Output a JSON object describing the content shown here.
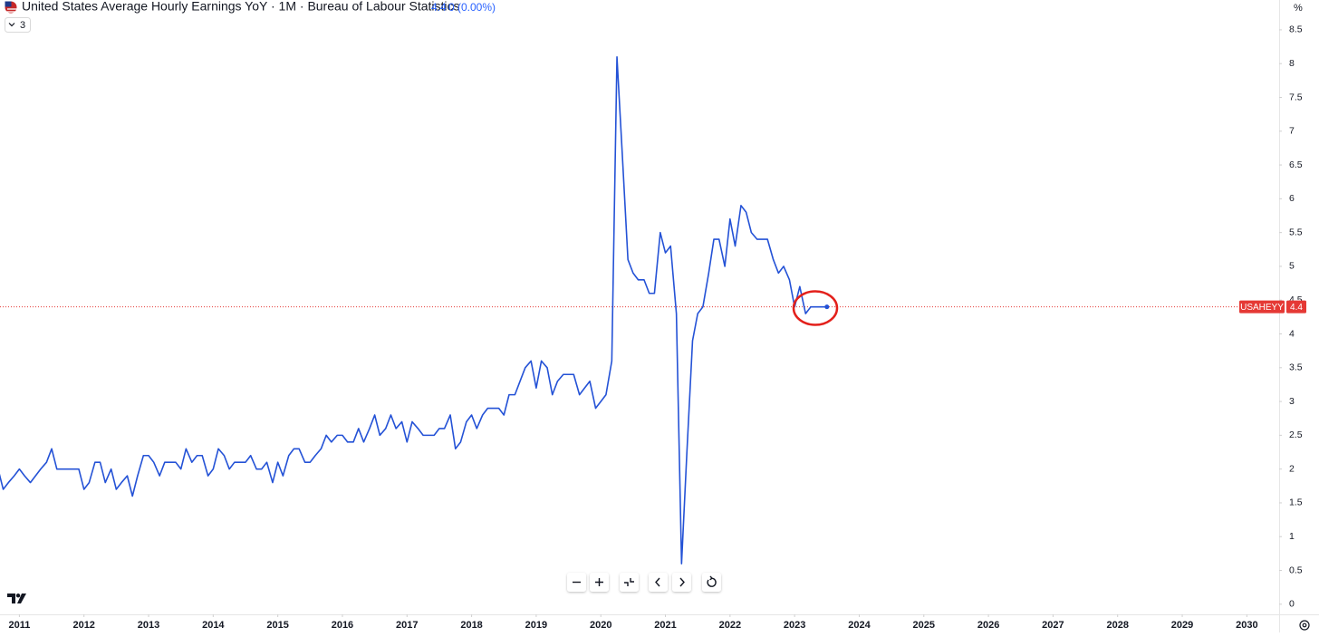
{
  "header": {
    "title": "United States Average Hourly Earnings YoY · 1M · Bureau of Labour Statistics",
    "change": "0 (0.00%)",
    "interval_button": "3"
  },
  "chart_data": {
    "type": "line",
    "x": [
      2010.67,
      2010.75,
      2010.83,
      2010.92,
      2011,
      2011.08,
      2011.17,
      2011.25,
      2011.33,
      2011.42,
      2011.5,
      2011.58,
      2011.67,
      2011.75,
      2011.83,
      2011.92,
      2012,
      2012.08,
      2012.17,
      2012.25,
      2012.33,
      2012.42,
      2012.5,
      2012.58,
      2012.67,
      2012.75,
      2012.83,
      2012.92,
      2013,
      2013.08,
      2013.17,
      2013.25,
      2013.33,
      2013.42,
      2013.5,
      2013.58,
      2013.67,
      2013.75,
      2013.83,
      2013.92,
      2014,
      2014.08,
      2014.17,
      2014.25,
      2014.33,
      2014.42,
      2014.5,
      2014.58,
      2014.67,
      2014.75,
      2014.83,
      2014.92,
      2015,
      2015.08,
      2015.17,
      2015.25,
      2015.33,
      2015.42,
      2015.5,
      2015.58,
      2015.67,
      2015.75,
      2015.83,
      2015.92,
      2016,
      2016.08,
      2016.17,
      2016.25,
      2016.33,
      2016.42,
      2016.5,
      2016.58,
      2016.67,
      2016.75,
      2016.83,
      2016.92,
      2017,
      2017.08,
      2017.17,
      2017.25,
      2017.33,
      2017.42,
      2017.5,
      2017.58,
      2017.67,
      2017.75,
      2017.83,
      2017.92,
      2018,
      2018.08,
      2018.17,
      2018.25,
      2018.33,
      2018.42,
      2018.5,
      2018.58,
      2018.67,
      2018.75,
      2018.83,
      2018.92,
      2019,
      2019.08,
      2019.17,
      2019.25,
      2019.33,
      2019.42,
      2019.5,
      2019.58,
      2019.67,
      2019.75,
      2019.83,
      2019.92,
      2020,
      2020.08,
      2020.17,
      2020.25,
      2020.33,
      2020.42,
      2020.5,
      2020.58,
      2020.67,
      2020.75,
      2020.83,
      2020.92,
      2021,
      2021.08,
      2021.17,
      2021.25,
      2021.33,
      2021.42,
      2021.5,
      2021.58,
      2021.67,
      2021.75,
      2021.83,
      2021.92,
      2022,
      2022.08,
      2022.17,
      2022.25,
      2022.33,
      2022.42,
      2022.5,
      2022.58,
      2022.67,
      2022.75,
      2022.83,
      2022.92,
      2023,
      2023.08,
      2023.17,
      2023.25,
      2023.33,
      2023.42,
      2023.5
    ],
    "series": [
      {
        "name": "USAHEYY",
        "color": "#2452d6",
        "values": [
          2.0,
          1.7,
          1.8,
          1.9,
          2.0,
          1.9,
          1.8,
          1.9,
          2.0,
          2.1,
          2.3,
          2.0,
          2.0,
          2.0,
          2.0,
          2.0,
          1.7,
          1.8,
          2.1,
          2.1,
          1.8,
          2.0,
          1.7,
          1.8,
          1.9,
          1.6,
          1.9,
          2.2,
          2.2,
          2.1,
          1.9,
          2.1,
          2.1,
          2.1,
          2.0,
          2.3,
          2.1,
          2.2,
          2.2,
          1.9,
          2.0,
          2.3,
          2.2,
          2.0,
          2.1,
          2.1,
          2.1,
          2.2,
          2.0,
          2.0,
          2.1,
          1.8,
          2.1,
          1.9,
          2.2,
          2.3,
          2.3,
          2.1,
          2.1,
          2.2,
          2.3,
          2.5,
          2.4,
          2.5,
          2.5,
          2.4,
          2.4,
          2.6,
          2.4,
          2.6,
          2.8,
          2.5,
          2.6,
          2.8,
          2.6,
          2.7,
          2.4,
          2.7,
          2.6,
          2.5,
          2.5,
          2.5,
          2.6,
          2.6,
          2.8,
          2.3,
          2.4,
          2.7,
          2.8,
          2.6,
          2.8,
          2.9,
          2.9,
          2.9,
          2.8,
          3.1,
          3.1,
          3.3,
          3.5,
          3.6,
          3.2,
          3.6,
          3.5,
          3.1,
          3.3,
          3.4,
          3.4,
          3.4,
          3.1,
          3.2,
          3.3,
          2.9,
          3.0,
          3.1,
          3.6,
          8.1,
          6.7,
          5.1,
          4.9,
          4.8,
          4.8,
          4.6,
          4.6,
          5.5,
          5.2,
          5.3,
          4.3,
          0.6,
          2.2,
          3.9,
          4.3,
          4.4,
          4.9,
          5.4,
          5.4,
          5.0,
          5.7,
          5.3,
          5.9,
          5.8,
          5.5,
          5.4,
          5.4,
          5.4,
          5.1,
          4.9,
          5.0,
          4.8,
          4.4,
          4.7,
          4.3,
          4.4,
          4.4,
          4.4,
          4.4
        ]
      }
    ],
    "xlim": [
      2010.7,
      2030.5
    ],
    "xticks": [
      2011,
      2012,
      2013,
      2014,
      2015,
      2016,
      2017,
      2018,
      2019,
      2020,
      2021,
      2022,
      2023,
      2024,
      2025,
      2026,
      2027,
      2028,
      2029,
      2030
    ],
    "ylim": [
      -0.15,
      8.7
    ],
    "yticks": [
      0,
      0.5,
      1,
      1.5,
      2,
      2.5,
      3,
      3.5,
      4,
      4.5,
      5,
      5.5,
      6,
      6.5,
      7,
      7.5,
      8,
      8.5
    ],
    "y_unit": "%",
    "last_value_line_color": "#e53935"
  }
}
